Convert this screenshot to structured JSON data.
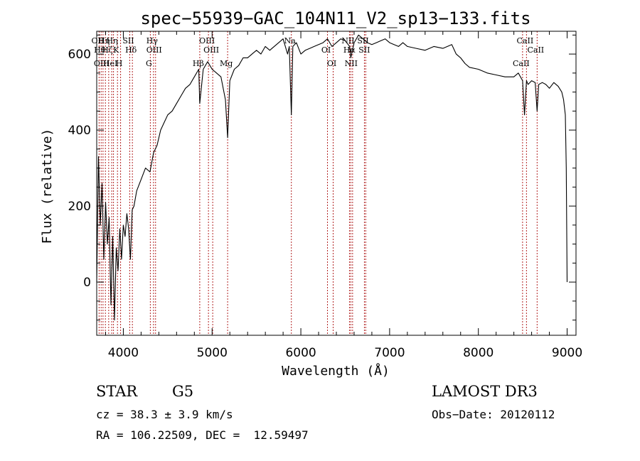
{
  "chart_data": {
    "type": "line",
    "title": "spec−55939−GAC_104N11_V2_sp13−133.fits",
    "xlabel": "Wavelength (Å)",
    "ylabel": "Flux (relative)",
    "xlim": [
      3700,
      9100
    ],
    "ylim": [
      -140,
      660
    ],
    "x_ticks": [
      4000,
      5000,
      6000,
      7000,
      8000,
      9000
    ],
    "y_ticks": [
      0,
      200,
      400,
      600
    ],
    "x_minor_step": 200,
    "y_minor_step": 50,
    "series": [
      {
        "name": "flux",
        "x": [
          3700,
          3720,
          3740,
          3760,
          3780,
          3800,
          3820,
          3840,
          3860,
          3880,
          3900,
          3920,
          3940,
          3960,
          3980,
          4000,
          4020,
          4040,
          4060,
          4080,
          4100,
          4120,
          4150,
          4200,
          4250,
          4300,
          4340,
          4380,
          4420,
          4460,
          4500,
          4550,
          4600,
          4650,
          4700,
          4750,
          4800,
          4850,
          4861,
          4900,
          4950,
          5000,
          5050,
          5100,
          5150,
          5175,
          5200,
          5250,
          5300,
          5350,
          5400,
          5450,
          5500,
          5550,
          5600,
          5650,
          5700,
          5750,
          5800,
          5850,
          5870,
          5893,
          5910,
          5950,
          6000,
          6050,
          6100,
          6150,
          6200,
          6250,
          6300,
          6350,
          6400,
          6450,
          6500,
          6550,
          6563,
          6600,
          6650,
          6700,
          6750,
          6800,
          6850,
          6900,
          6950,
          7000,
          7050,
          7100,
          7150,
          7200,
          7300,
          7400,
          7500,
          7600,
          7700,
          7750,
          7800,
          7850,
          7900,
          8000,
          8100,
          8200,
          8300,
          8400,
          8450,
          8498,
          8520,
          8542,
          8560,
          8600,
          8640,
          8662,
          8680,
          8720,
          8760,
          8800,
          8850,
          8900,
          8940,
          8960,
          8980,
          8990,
          9000
        ],
        "y": [
          0,
          330,
          150,
          260,
          60,
          210,
          100,
          170,
          -60,
          120,
          -100,
          90,
          30,
          140,
          60,
          150,
          120,
          180,
          140,
          60,
          190,
          200,
          240,
          270,
          300,
          290,
          340,
          360,
          400,
          420,
          440,
          450,
          470,
          490,
          510,
          520,
          540,
          560,
          470,
          560,
          580,
          560,
          550,
          540,
          480,
          380,
          530,
          560,
          570,
          590,
          590,
          600,
          610,
          600,
          620,
          610,
          620,
          630,
          640,
          600,
          620,
          440,
          620,
          630,
          600,
          610,
          615,
          620,
          625,
          630,
          640,
          620,
          630,
          640,
          635,
          620,
          590,
          630,
          650,
          640,
          630,
          625,
          630,
          635,
          640,
          630,
          625,
          620,
          630,
          620,
          615,
          610,
          620,
          615,
          625,
          600,
          590,
          575,
          565,
          560,
          550,
          545,
          540,
          540,
          550,
          530,
          440,
          530,
          520,
          530,
          525,
          450,
          520,
          525,
          520,
          510,
          525,
          515,
          500,
          480,
          440,
          300,
          0
        ]
      }
    ],
    "lines": [
      {
        "x": 3727,
        "label": "OII"
      },
      {
        "x": 3750,
        "label": "Hθ"
      },
      {
        "x": 3771,
        "label": "OIII"
      },
      {
        "x": 3798,
        "label": "Hη"
      },
      {
        "x": 3835,
        "label": "Hζ"
      },
      {
        "x": 3869,
        "label": "HeI"
      },
      {
        "x": 3889,
        "label": "Hη"
      },
      {
        "x": 3934,
        "label": "K"
      },
      {
        "x": 3969,
        "label": "H"
      },
      {
        "x": 4072,
        "label": "SII"
      },
      {
        "x": 4102,
        "label": "Hδ"
      },
      {
        "x": 4304,
        "label": "G"
      },
      {
        "x": 4340,
        "label": "Hγ"
      },
      {
        "x": 4363,
        "label": "OIII"
      },
      {
        "x": 4861,
        "label": "Hβ"
      },
      {
        "x": 4959,
        "label": "OIII"
      },
      {
        "x": 5007,
        "label": "OIII"
      },
      {
        "x": 5175,
        "label": "Mg"
      },
      {
        "x": 5893,
        "label": "Na"
      },
      {
        "x": 6300,
        "label": "OI"
      },
      {
        "x": 6364,
        "label": "OI"
      },
      {
        "x": 6548,
        "label": "NII"
      },
      {
        "x": 6563,
        "label": "Hα"
      },
      {
        "x": 6583,
        "label": "NII"
      },
      {
        "x": 6716,
        "label": "SII"
      },
      {
        "x": 6731,
        "label": "SII"
      },
      {
        "x": 8498,
        "label": "CaII"
      },
      {
        "x": 8542,
        "label": "CaII"
      },
      {
        "x": 8662,
        "label": "CaII"
      }
    ]
  },
  "info": {
    "class": "STAR",
    "subclass": "G5",
    "survey": "LAMOST DR3",
    "cz": "cz = 38.3 ± 3.9 km/s",
    "obs_date": "Obs−Date: 20120112",
    "coords": "RA = 106.22509, DEC =  12.59497"
  }
}
